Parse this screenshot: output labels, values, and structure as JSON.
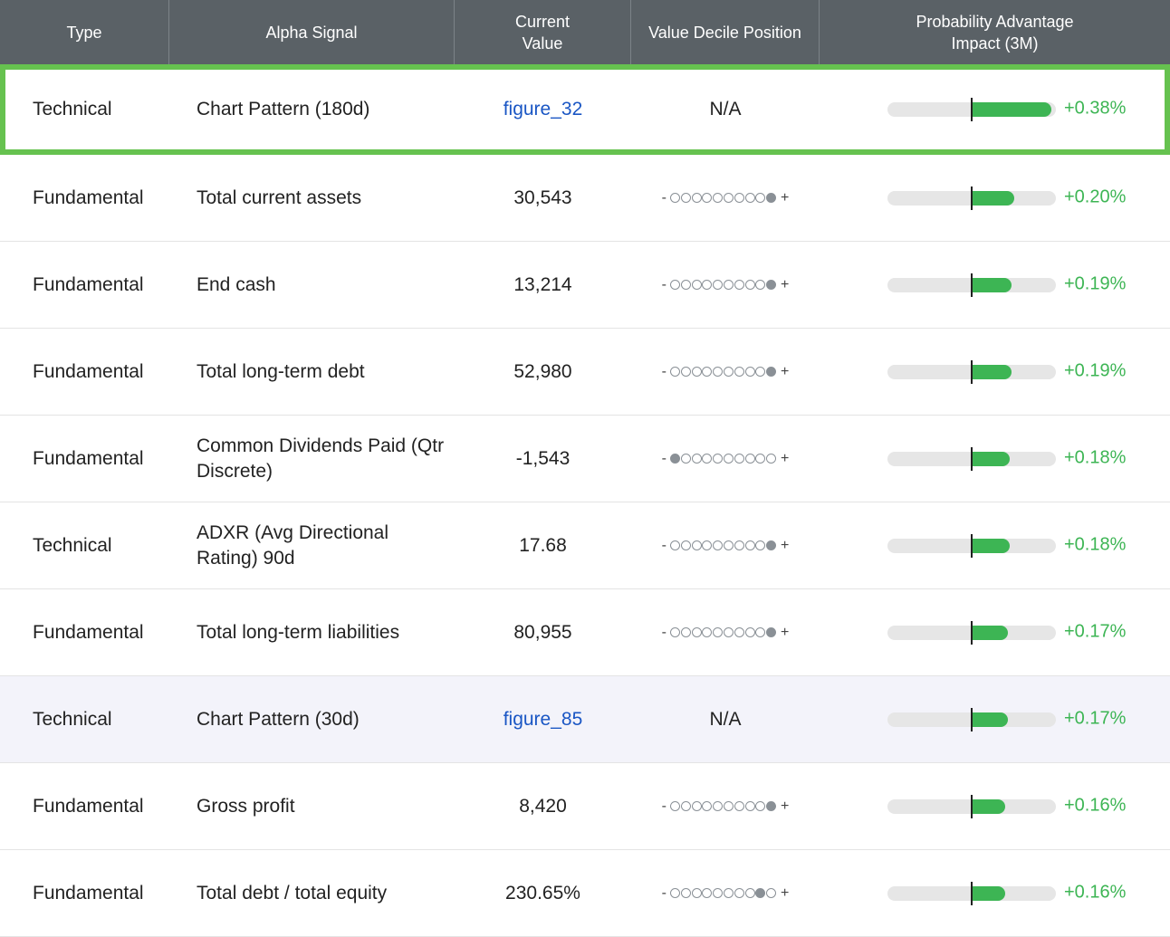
{
  "header": {
    "type": "Type",
    "signal": "Alpha Signal",
    "value": "Current\nValue",
    "decile": "Value Decile Position",
    "impact": "Probability Advantage\nImpact (3M)"
  },
  "decile_signs": {
    "minus": "-",
    "plus": "+"
  },
  "rows": [
    {
      "type": "Technical",
      "signal": "Chart Pattern (180d)",
      "value": "figure_32",
      "value_is_link": true,
      "decile": "N/A",
      "decile_dots": null,
      "impact_label": "+0.38%",
      "impact_pct": 0.38,
      "selected": true
    },
    {
      "type": "Fundamental",
      "signal": "Total current assets",
      "value": "30,543",
      "value_is_link": false,
      "decile": null,
      "decile_dots": 10,
      "impact_label": "+0.20%",
      "impact_pct": 0.2
    },
    {
      "type": "Fundamental",
      "signal": "End cash",
      "value": "13,214",
      "value_is_link": false,
      "decile": null,
      "decile_dots": 10,
      "impact_label": "+0.19%",
      "impact_pct": 0.19
    },
    {
      "type": "Fundamental",
      "signal": "Total long-term debt",
      "value": "52,980",
      "value_is_link": false,
      "decile": null,
      "decile_dots": 10,
      "impact_label": "+0.19%",
      "impact_pct": 0.19
    },
    {
      "type": "Fundamental",
      "signal": "Common Dividends Paid (Qtr Discrete)",
      "value": "-1,543",
      "value_is_link": false,
      "decile": null,
      "decile_dots": 1,
      "impact_label": "+0.18%",
      "impact_pct": 0.18
    },
    {
      "type": "Technical",
      "signal": "ADXR (Avg Directional Rating) 90d",
      "value": "17.68",
      "value_is_link": false,
      "decile": null,
      "decile_dots": 10,
      "impact_label": "+0.18%",
      "impact_pct": 0.18
    },
    {
      "type": "Fundamental",
      "signal": "Total long-term liabilities",
      "value": "80,955",
      "value_is_link": false,
      "decile": null,
      "decile_dots": 10,
      "impact_label": "+0.17%",
      "impact_pct": 0.17
    },
    {
      "type": "Technical",
      "signal": "Chart Pattern (30d)",
      "value": "figure_85",
      "value_is_link": true,
      "decile": "N/A",
      "decile_dots": null,
      "impact_label": "+0.17%",
      "impact_pct": 0.17,
      "highlight": true
    },
    {
      "type": "Fundamental",
      "signal": "Gross profit",
      "value": "8,420",
      "value_is_link": false,
      "decile": null,
      "decile_dots": 10,
      "impact_label": "+0.16%",
      "impact_pct": 0.16
    },
    {
      "type": "Fundamental",
      "signal": "Total debt / total equity",
      "value": "230.65%",
      "value_is_link": false,
      "decile": null,
      "decile_dots": 9,
      "impact_label": "+0.16%",
      "impact_pct": 0.16
    }
  ],
  "colors": {
    "header_bg": "#5a6166",
    "positive": "#3db554",
    "link": "#1a56c4",
    "selected_border": "#66c24f",
    "dot": "#8a9096"
  },
  "impact_scale_max_pct": 0.4
}
